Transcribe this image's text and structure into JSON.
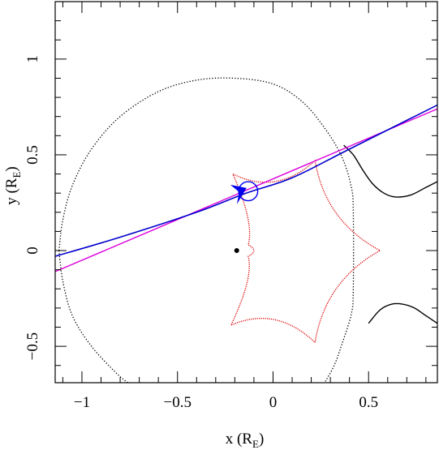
{
  "chart_data": {
    "type": "scatter",
    "title": "",
    "xlabel": {
      "main": "x (R",
      "sub": "E",
      "close": ")"
    },
    "ylabel": {
      "main": "y (R",
      "sub": "E",
      "close": ")"
    },
    "xlim": [
      -1.14,
      0.86
    ],
    "ylim": [
      -0.69,
      1.3
    ],
    "xticks": [
      -1,
      -0.5,
      0,
      0.5
    ],
    "xtick_labels": [
      "−1",
      "−0.5",
      "0",
      "0.5"
    ],
    "yticks": [
      -0.5,
      0,
      0.5,
      1
    ],
    "ytick_labels": [
      "−0.5",
      "0",
      "0.5",
      "1"
    ],
    "grid": false,
    "colors": {
      "caustic": "#dd0000",
      "critical_curve": "#000000",
      "trajectory": "#0000cc",
      "straight_trajectory": "#dd00dd",
      "source_marker": "#0000ee",
      "lens": "#000000"
    },
    "critical_curve_outer": {
      "style": "dotted",
      "points": [
        [
          -1.12,
          0.0
        ],
        [
          -1.1,
          0.16
        ],
        [
          -1.05,
          0.34
        ],
        [
          -0.95,
          0.53
        ],
        [
          -0.8,
          0.7
        ],
        [
          -0.6,
          0.83
        ],
        [
          -0.4,
          0.89
        ],
        [
          -0.2,
          0.9
        ],
        [
          0.0,
          0.87
        ],
        [
          0.15,
          0.78
        ],
        [
          0.27,
          0.64
        ],
        [
          0.36,
          0.49
        ],
        [
          0.41,
          0.33
        ],
        [
          0.42,
          0.2
        ],
        [
          0.42,
          -0.2
        ],
        [
          0.41,
          -0.33
        ],
        [
          0.36,
          -0.49
        ],
        [
          0.32,
          -0.6
        ],
        [
          0.27,
          -0.69
        ]
      ],
      "bottom_left_points": [
        [
          -1.12,
          0.0
        ],
        [
          -1.1,
          -0.16
        ],
        [
          -1.05,
          -0.34
        ],
        [
          -0.95,
          -0.5
        ],
        [
          -0.82,
          -0.64
        ],
        [
          -0.76,
          -0.69
        ]
      ]
    },
    "critical_curve_right": {
      "style": "solid",
      "upper": [
        [
          0.37,
          0.55
        ],
        [
          0.42,
          0.5
        ],
        [
          0.47,
          0.42
        ],
        [
          0.52,
          0.35
        ],
        [
          0.58,
          0.3
        ],
        [
          0.64,
          0.28
        ],
        [
          0.72,
          0.29
        ],
        [
          0.8,
          0.33
        ],
        [
          0.86,
          0.36
        ]
      ],
      "lower": [
        [
          0.5,
          -0.38
        ],
        [
          0.56,
          -0.31
        ],
        [
          0.62,
          -0.28
        ],
        [
          0.68,
          -0.28
        ],
        [
          0.74,
          -0.3
        ],
        [
          0.8,
          -0.34
        ],
        [
          0.86,
          -0.38
        ]
      ]
    },
    "caustic": {
      "style": "dotted",
      "cusps": [
        [
          -0.21,
          0.4
        ],
        [
          0.22,
          0.47
        ],
        [
          0.56,
          0.0
        ],
        [
          0.22,
          -0.48
        ],
        [
          -0.22,
          -0.39
        ]
      ],
      "inner_cusps": [
        [
          -0.13,
          0.03
        ],
        [
          -0.13,
          -0.03
        ]
      ]
    },
    "trajectory": {
      "points": [
        [
          -1.14,
          -0.03
        ],
        [
          -0.8,
          0.07
        ],
        [
          -0.4,
          0.2
        ],
        [
          -0.14,
          0.3
        ],
        [
          0.1,
          0.38
        ],
        [
          0.4,
          0.53
        ],
        [
          0.86,
          0.76
        ]
      ]
    },
    "straight_trajectory": {
      "points": [
        [
          -1.14,
          -0.11
        ],
        [
          0.86,
          0.74
        ]
      ]
    },
    "source": {
      "x": -0.13,
      "y": 0.31,
      "radius": 0.05
    },
    "lens_point": {
      "x": -0.19,
      "y": 0.0
    }
  }
}
